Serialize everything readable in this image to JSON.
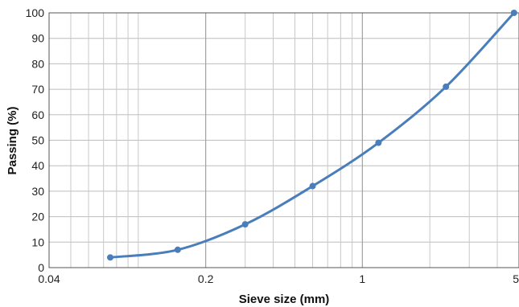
{
  "chart_data": {
    "type": "line",
    "title": "",
    "xlabel": "Sieve size (mm)",
    "ylabel": "Passing (%)",
    "xscale": "log",
    "xlim": [
      0.04,
      5
    ],
    "ylim": [
      0,
      100
    ],
    "grid": true,
    "legend": "none",
    "x_tick_labels": [
      "0.04",
      "0.2",
      "1",
      "5"
    ],
    "y_tick_labels": [
      "0",
      "10",
      "20",
      "30",
      "40",
      "50",
      "60",
      "70",
      "80",
      "90",
      "100"
    ],
    "series": [
      {
        "color": "#4a7ebb",
        "x": [
          0.075,
          0.15,
          0.3,
          0.6,
          1.18,
          2.36,
          4.75
        ],
        "y": [
          4,
          7,
          17,
          32,
          49,
          71,
          100
        ]
      }
    ]
  }
}
